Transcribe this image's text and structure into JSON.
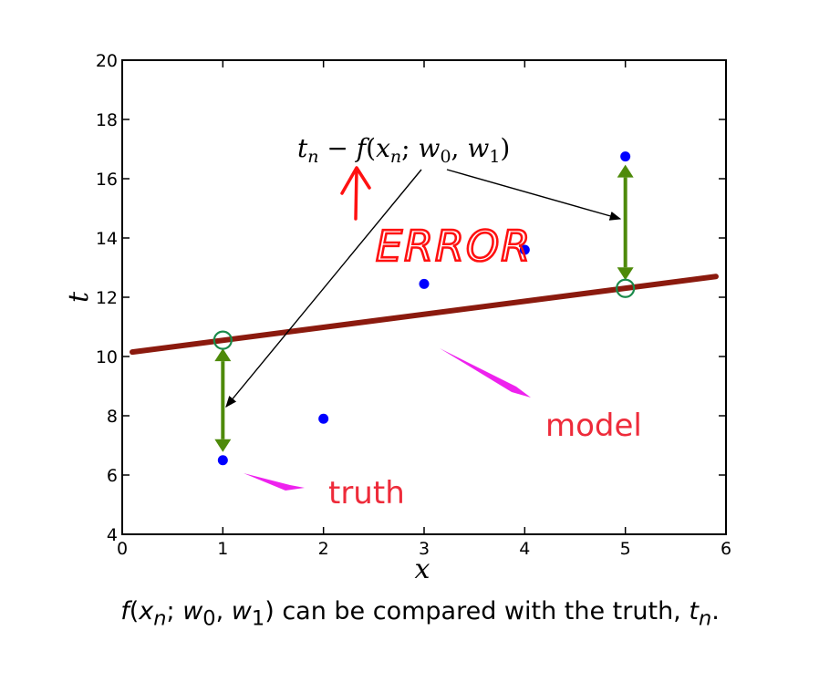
{
  "chart_data": {
    "type": "scatter",
    "xlim": [
      0,
      6
    ],
    "ylim": [
      4,
      20
    ],
    "xticks": [
      "0",
      "1",
      "2",
      "3",
      "4",
      "5",
      "6"
    ],
    "yticks": [
      "4",
      "6",
      "8",
      "10",
      "12",
      "14",
      "16",
      "18",
      "20"
    ],
    "xlabel": "x",
    "ylabel": "t",
    "points": [
      {
        "x": 1,
        "y": 6.5
      },
      {
        "x": 2,
        "y": 7.9
      },
      {
        "x": 3,
        "y": 12.45
      },
      {
        "x": 4,
        "y": 13.6
      },
      {
        "x": 5,
        "y": 16.75
      }
    ],
    "model_line": {
      "x": [
        0.1,
        5.9
      ],
      "y": [
        10.15,
        12.7
      ]
    },
    "predictions": [
      {
        "x": 1,
        "y": 10.55
      },
      {
        "x": 5,
        "y": 12.3
      }
    ],
    "grid": false,
    "colors": {
      "points": "#0000ff",
      "line": "#8b1a0e",
      "error_arrow": "#4e8a0a",
      "prediction_marker": "#1a8a4a",
      "annotation_text": "#ee2b3a",
      "annotation_arrow": "#ee22ee",
      "handwriting": "#ff1111"
    }
  },
  "annotations": {
    "formula_parts": [
      "t",
      "n",
      " − ",
      "f",
      "(",
      "x",
      "n",
      "; ",
      "w",
      "0",
      ", ",
      "w",
      "1",
      ")"
    ],
    "error": "ERROR",
    "model": "model",
    "truth": "truth"
  },
  "caption": {
    "parts": [
      "f",
      "(",
      "x",
      "n",
      "; ",
      "w",
      "0",
      ", ",
      "w",
      "1",
      ") can be compared with the truth, ",
      "t",
      "n",
      "."
    ]
  }
}
